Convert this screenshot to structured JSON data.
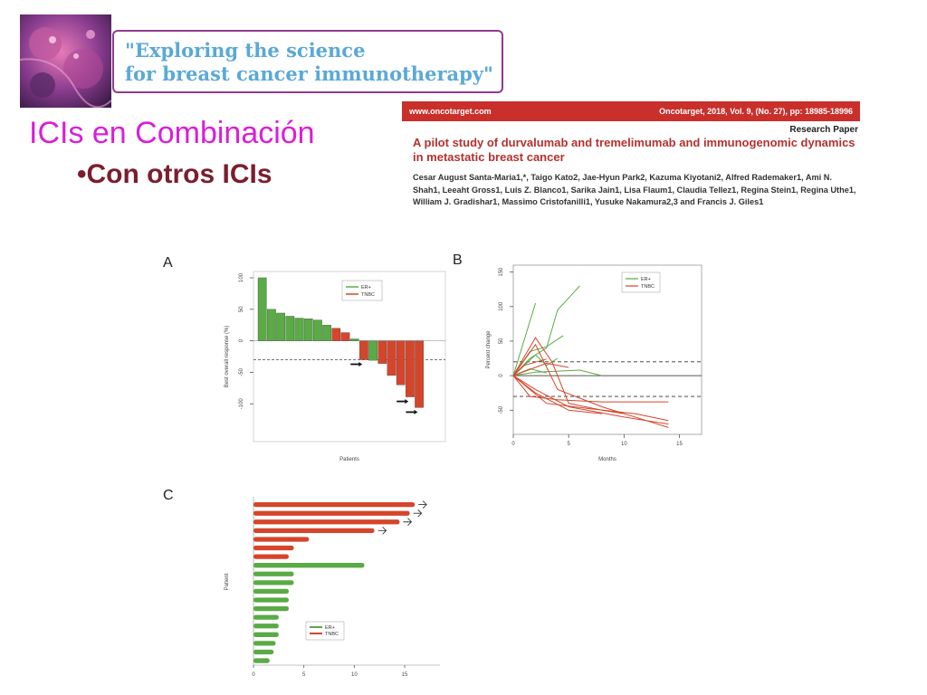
{
  "banner": {
    "line1": "\"Exploring the science",
    "line2": "for breast cancer immunotherapy\""
  },
  "slide": {
    "title": "ICIs en Combinación",
    "subtitle": "•Con otros  ICIs"
  },
  "paper": {
    "site": "www.oncotarget.com",
    "journal": "Oncotarget, 2018, Vol. 9, (No. 27), pp: 18985-18996",
    "type": "Research Paper",
    "title": "A pilot study of durvalumab and tremelimumab and immunogenomic dynamics in metastatic breast cancer",
    "authors": "Cesar August Santa-Maria1,*, Taigo Kato2, Jae-Hyun Park2, Kazuma Kiyotani2, Alfred Rademaker1, Ami N. Shah1, Leeaht Gross1, Luis Z. Blanco1, Sarika Jain1, Lisa Flaum1, Claudia Tellez1, Regina Stein1, Regina Uthe1, William J. Gradishar1, Massimo Cristofanilli1, Yusuke Nakamura2,3 and Francis J. Giles1"
  },
  "colors": {
    "green": "#5aaa46",
    "red": "#d5452b",
    "title": "#d91ed9",
    "subtitle": "#7a1e2e",
    "banner_text": "#5aa9d6",
    "banner_border": "#8e3c8e"
  },
  "chart_data": [
    {
      "panel": "A",
      "type": "bar",
      "ylabel": "Best overall response (%)",
      "xlabel": "Patients",
      "ylim": [
        -160,
        110
      ],
      "yticks": [
        100,
        50,
        0,
        -50,
        -100
      ],
      "reference_lines": [
        -30
      ],
      "legend": [
        "ER+",
        "TNBC"
      ],
      "legend_position": "top-right",
      "values": [
        100,
        50,
        44,
        39,
        36,
        35,
        33,
        25,
        20,
        13,
        3,
        -30,
        -31,
        -36,
        -55,
        -70,
        -89,
        -106
      ],
      "groups": [
        "ER+",
        "ER+",
        "ER+",
        "ER+",
        "ER+",
        "ER+",
        "ER+",
        "ER+",
        "TNBC",
        "TNBC",
        "ER+",
        "TNBC",
        "ER+",
        "TNBC",
        "TNBC",
        "TNBC",
        "TNBC",
        "TNBC"
      ],
      "arrows_at": [
        11,
        16,
        17
      ]
    },
    {
      "panel": "B",
      "type": "line",
      "ylabel": "Percent change",
      "xlabel": "Months",
      "xlim": [
        0,
        17
      ],
      "ylim": [
        -85,
        160
      ],
      "xticks": [
        0,
        5,
        10,
        15
      ],
      "yticks": [
        150,
        100,
        50,
        0,
        -50
      ],
      "reference_lines": [
        20,
        -30
      ],
      "legend": [
        "ER+",
        "TNBC"
      ],
      "legend_position": "top-right",
      "series": [
        {
          "group": "ER+",
          "x": [
            0,
            2
          ],
          "y": [
            0,
            105
          ]
        },
        {
          "group": "ER+",
          "x": [
            0,
            1.5,
            3,
            4,
            6
          ],
          "y": [
            0,
            25,
            40,
            95,
            130
          ]
        },
        {
          "group": "ER+",
          "x": [
            0,
            1.5,
            3,
            4.5
          ],
          "y": [
            0,
            35,
            42,
            58
          ]
        },
        {
          "group": "ER+",
          "x": [
            0,
            2,
            3,
            4
          ],
          "y": [
            0,
            30,
            15,
            25
          ]
        },
        {
          "group": "ER+",
          "x": [
            0,
            2,
            6,
            8
          ],
          "y": [
            0,
            5,
            8,
            0
          ]
        },
        {
          "group": "ER+",
          "x": [
            0,
            1.5,
            3
          ],
          "y": [
            0,
            10,
            4
          ]
        },
        {
          "group": "TNBC",
          "x": [
            0,
            2,
            3.5,
            5,
            8,
            10
          ],
          "y": [
            0,
            55,
            20,
            -40,
            -50,
            -55
          ]
        },
        {
          "group": "TNBC",
          "x": [
            0,
            2,
            4,
            8,
            12,
            14
          ],
          "y": [
            0,
            45,
            -20,
            -45,
            -65,
            -75
          ]
        },
        {
          "group": "TNBC",
          "x": [
            0,
            1.5,
            4,
            8,
            14
          ],
          "y": [
            0,
            -30,
            -35,
            -38,
            -38
          ]
        },
        {
          "group": "TNBC",
          "x": [
            0,
            2,
            5,
            10,
            14
          ],
          "y": [
            0,
            -20,
            -45,
            -60,
            -70
          ]
        },
        {
          "group": "TNBC",
          "x": [
            0,
            3,
            7,
            11,
            14
          ],
          "y": [
            0,
            -40,
            -48,
            -55,
            -65
          ]
        },
        {
          "group": "TNBC",
          "x": [
            0,
            2,
            5,
            8
          ],
          "y": [
            0,
            -25,
            -50,
            -55
          ]
        },
        {
          "group": "TNBC",
          "x": [
            0,
            3,
            5
          ],
          "y": [
            0,
            18,
            12
          ]
        },
        {
          "group": "TNBC",
          "x": [
            0,
            1,
            3
          ],
          "y": [
            0,
            15,
            24
          ]
        }
      ]
    },
    {
      "panel": "C",
      "type": "bar",
      "orientation": "horizontal",
      "ylabel": "Patient",
      "xlabel": "",
      "xlim": [
        0,
        18.5
      ],
      "xticks": [
        0,
        5,
        10,
        15
      ],
      "legend": [
        "ER+",
        "TNBC"
      ],
      "legend_position": "bottom-left",
      "values": [
        16,
        15.5,
        14.5,
        12,
        5.5,
        4,
        3.5,
        11,
        4,
        4,
        3.5,
        3.5,
        3.5,
        2.5,
        2.5,
        2.5,
        2.2,
        2,
        1.6
      ],
      "groups": [
        "TNBC",
        "TNBC",
        "TNBC",
        "TNBC",
        "TNBC",
        "TNBC",
        "TNBC",
        "ER+",
        "ER+",
        "ER+",
        "ER+",
        "ER+",
        "ER+",
        "ER+",
        "ER+",
        "ER+",
        "ER+",
        "ER+",
        "ER+"
      ],
      "ongoing": [
        0,
        1,
        2,
        3
      ]
    }
  ]
}
